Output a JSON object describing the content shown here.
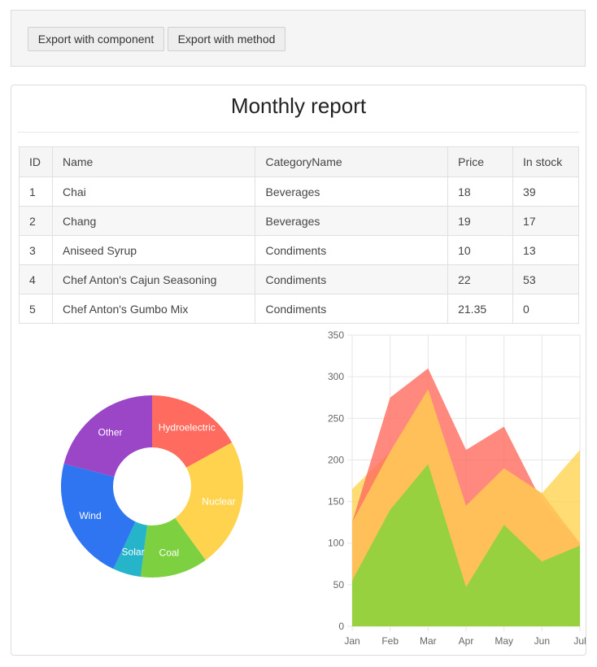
{
  "toolbar": {
    "export_component_label": "Export with component",
    "export_method_label": "Export with method"
  },
  "report": {
    "title": "Monthly report",
    "columns": [
      "ID",
      "Name",
      "CategoryName",
      "Price",
      "In stock"
    ],
    "rows": [
      [
        "1",
        "Chai",
        "Beverages",
        "18",
        "39"
      ],
      [
        "2",
        "Chang",
        "Beverages",
        "19",
        "17"
      ],
      [
        "3",
        "Aniseed Syrup",
        "Condiments",
        "10",
        "13"
      ],
      [
        "4",
        "Chef Anton's Cajun Seasoning",
        "Condiments",
        "22",
        "53"
      ],
      [
        "5",
        "Chef Anton's Gumbo Mix",
        "Condiments",
        "21.35",
        "0"
      ]
    ]
  },
  "chart_data": [
    {
      "type": "pie",
      "subtype": "donut",
      "slices": [
        {
          "label": "Hydroelectric",
          "value": 17,
          "color": "#ff6b5e"
        },
        {
          "label": "Nuclear",
          "value": 23,
          "color": "#ffd34d"
        },
        {
          "label": "Coal",
          "value": 12,
          "color": "#7dd03f"
        },
        {
          "label": "Solar",
          "value": 5,
          "color": "#25b4c9"
        },
        {
          "label": "Wind",
          "value": 22,
          "color": "#2f74f0"
        },
        {
          "label": "Other",
          "value": 21,
          "color": "#9b45c7"
        }
      ]
    },
    {
      "type": "area",
      "x": [
        "Jan",
        "Feb",
        "Mar",
        "Apr",
        "May",
        "Jun",
        "Jul"
      ],
      "ylim": [
        0,
        350
      ],
      "yticks": [
        0,
        50,
        100,
        150,
        200,
        250,
        300,
        350
      ],
      "grid": true,
      "series": [
        {
          "values": [
            165,
            210,
            285,
            145,
            190,
            160,
            212
          ],
          "color": "#ffd34d",
          "opacity": 0.78
        },
        {
          "values": [
            125,
            275,
            310,
            212,
            240,
            150,
            100
          ],
          "color": "#ff6b5e",
          "opacity": 0.8
        },
        {
          "values": [
            125,
            210,
            285,
            145,
            190,
            160,
            100
          ],
          "color": "#ffc35a",
          "opacity": 0.95
        },
        {
          "values": [
            55,
            140,
            195,
            47,
            122,
            78,
            97
          ],
          "color": "#97d13f",
          "opacity": 1
        }
      ]
    }
  ]
}
